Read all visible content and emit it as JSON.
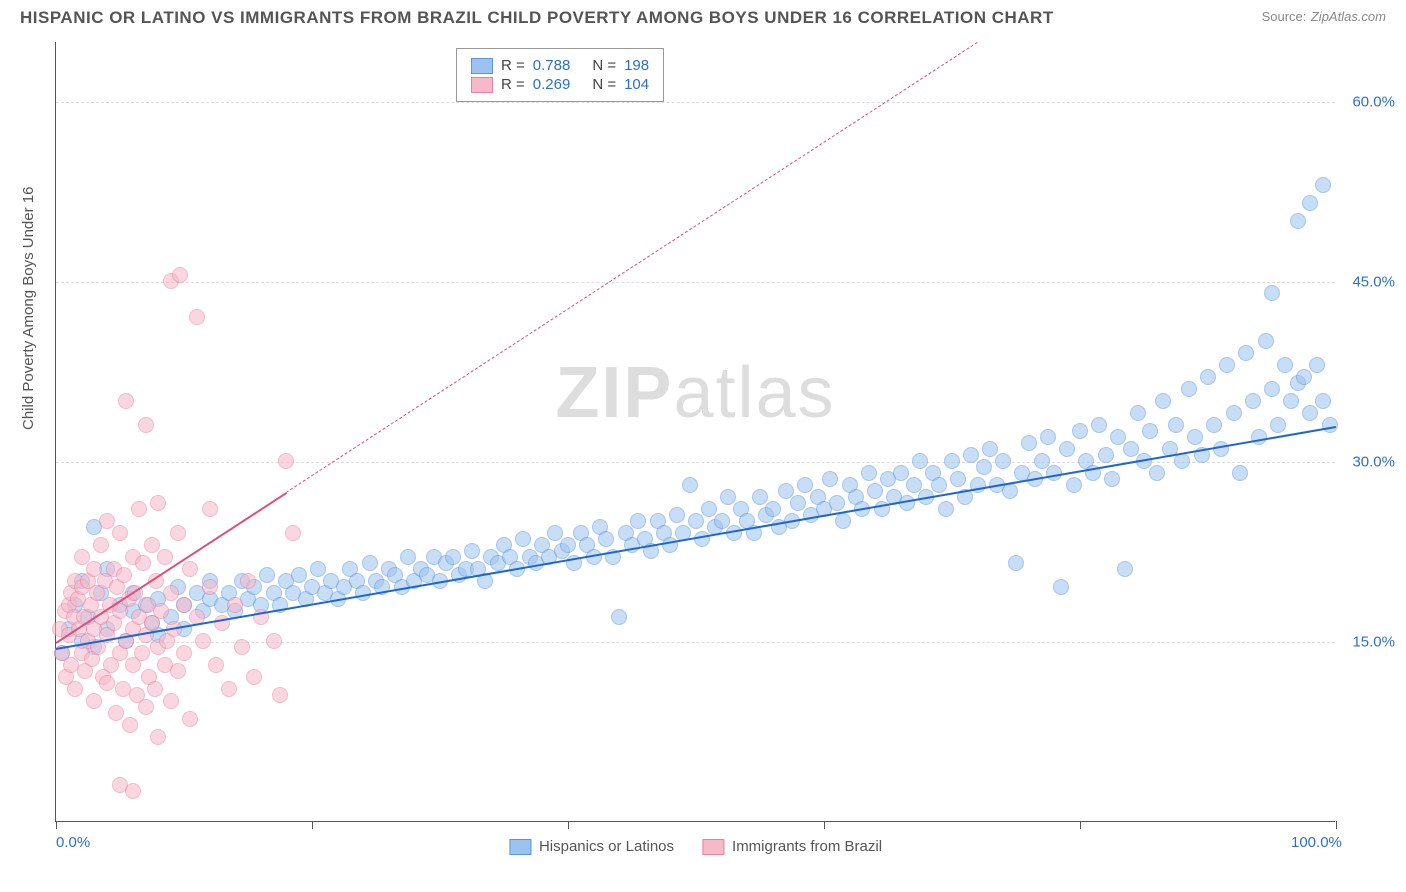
{
  "title": "HISPANIC OR LATINO VS IMMIGRANTS FROM BRAZIL CHILD POVERTY AMONG BOYS UNDER 16 CORRELATION CHART",
  "source_label": "Source:",
  "source_value": "ZipAtlas.com",
  "watermark_a": "ZIP",
  "watermark_b": "atlas",
  "chart": {
    "type": "scatter",
    "ylabel": "Child Poverty Among Boys Under 16",
    "xlim": [
      0,
      100
    ],
    "ylim": [
      0,
      65
    ],
    "xticks": [
      0,
      20,
      40,
      60,
      80,
      100
    ],
    "xtick_labels": {
      "0": "0.0%",
      "100": "100.0%"
    },
    "yticks": [
      15,
      30,
      45,
      60
    ],
    "ytick_labels": {
      "15": "15.0%",
      "30": "30.0%",
      "45": "45.0%",
      "60": "60.0%"
    },
    "grid_color": "#dddddd",
    "axis_color": "#555555",
    "tick_label_color": "#2b6fd6",
    "background_color": "#ffffff",
    "marker_radius": 8,
    "marker_opacity": 0.55,
    "marker_border_opacity": 0.9,
    "label_fontsize": 15,
    "title_fontsize": 17
  },
  "series": [
    {
      "key": "hispanics",
      "label": "Hispanics or Latinos",
      "color_fill": "#9cc3f0",
      "color_stroke": "#5a96db",
      "trend_color": "#1e66d0",
      "R": "0.788",
      "N": "198",
      "trend": {
        "x1": 0,
        "y1": 14.5,
        "x2": 100,
        "y2": 33,
        "dash_after_x": null
      },
      "points": [
        [
          0.5,
          14
        ],
        [
          1,
          16
        ],
        [
          1.5,
          18
        ],
        [
          2,
          15
        ],
        [
          2,
          20
        ],
        [
          2.5,
          17
        ],
        [
          3,
          24.5
        ],
        [
          3,
          14.5
        ],
        [
          3.5,
          19
        ],
        [
          4,
          16
        ],
        [
          4,
          21
        ],
        [
          5,
          18
        ],
        [
          5.5,
          15
        ],
        [
          6,
          17.5
        ],
        [
          6,
          19
        ],
        [
          7,
          18
        ],
        [
          7.5,
          16.5
        ],
        [
          8,
          18.5
        ],
        [
          8,
          15.5
        ],
        [
          9,
          17
        ],
        [
          9.5,
          19.5
        ],
        [
          10,
          18
        ],
        [
          10,
          16
        ],
        [
          11,
          19
        ],
        [
          11.5,
          17.5
        ],
        [
          12,
          18.5
        ],
        [
          12,
          20
        ],
        [
          13,
          18
        ],
        [
          13.5,
          19
        ],
        [
          14,
          17.5
        ],
        [
          14.5,
          20
        ],
        [
          15,
          18.5
        ],
        [
          15.5,
          19.5
        ],
        [
          16,
          18
        ],
        [
          16.5,
          20.5
        ],
        [
          17,
          19
        ],
        [
          17.5,
          18
        ],
        [
          18,
          20
        ],
        [
          18.5,
          19
        ],
        [
          19,
          20.5
        ],
        [
          19.5,
          18.5
        ],
        [
          20,
          19.5
        ],
        [
          20.5,
          21
        ],
        [
          21,
          19
        ],
        [
          21.5,
          20
        ],
        [
          22,
          18.5
        ],
        [
          22.5,
          19.5
        ],
        [
          23,
          21
        ],
        [
          23.5,
          20
        ],
        [
          24,
          19
        ],
        [
          24.5,
          21.5
        ],
        [
          25,
          20
        ],
        [
          25.5,
          19.5
        ],
        [
          26,
          21
        ],
        [
          26.5,
          20.5
        ],
        [
          27,
          19.5
        ],
        [
          27.5,
          22
        ],
        [
          28,
          20
        ],
        [
          28.5,
          21
        ],
        [
          29,
          20.5
        ],
        [
          29.5,
          22
        ],
        [
          30,
          20
        ],
        [
          30.5,
          21.5
        ],
        [
          31,
          22
        ],
        [
          31.5,
          20.5
        ],
        [
          32,
          21
        ],
        [
          32.5,
          22.5
        ],
        [
          33,
          21
        ],
        [
          33.5,
          20
        ],
        [
          34,
          22
        ],
        [
          34.5,
          21.5
        ],
        [
          35,
          23
        ],
        [
          35.5,
          22
        ],
        [
          36,
          21
        ],
        [
          36.5,
          23.5
        ],
        [
          37,
          22
        ],
        [
          37.5,
          21.5
        ],
        [
          38,
          23
        ],
        [
          38.5,
          22
        ],
        [
          39,
          24
        ],
        [
          39.5,
          22.5
        ],
        [
          40,
          23
        ],
        [
          40.5,
          21.5
        ],
        [
          41,
          24
        ],
        [
          41.5,
          23
        ],
        [
          42,
          22
        ],
        [
          42.5,
          24.5
        ],
        [
          43,
          23.5
        ],
        [
          43.5,
          22
        ],
        [
          44,
          17
        ],
        [
          44.5,
          24
        ],
        [
          45,
          23
        ],
        [
          45.5,
          25
        ],
        [
          46,
          23.5
        ],
        [
          46.5,
          22.5
        ],
        [
          47,
          25
        ],
        [
          47.5,
          24
        ],
        [
          48,
          23
        ],
        [
          48.5,
          25.5
        ],
        [
          49,
          24
        ],
        [
          49.5,
          28
        ],
        [
          50,
          25
        ],
        [
          50.5,
          23.5
        ],
        [
          51,
          26
        ],
        [
          51.5,
          24.5
        ],
        [
          52,
          25
        ],
        [
          52.5,
          27
        ],
        [
          53,
          24
        ],
        [
          53.5,
          26
        ],
        [
          54,
          25
        ],
        [
          54.5,
          24
        ],
        [
          55,
          27
        ],
        [
          55.5,
          25.5
        ],
        [
          56,
          26
        ],
        [
          56.5,
          24.5
        ],
        [
          57,
          27.5
        ],
        [
          57.5,
          25
        ],
        [
          58,
          26.5
        ],
        [
          58.5,
          28
        ],
        [
          59,
          25.5
        ],
        [
          59.5,
          27
        ],
        [
          60,
          26
        ],
        [
          60.5,
          28.5
        ],
        [
          61,
          26.5
        ],
        [
          61.5,
          25
        ],
        [
          62,
          28
        ],
        [
          62.5,
          27
        ],
        [
          63,
          26
        ],
        [
          63.5,
          29
        ],
        [
          64,
          27.5
        ],
        [
          64.5,
          26
        ],
        [
          65,
          28.5
        ],
        [
          65.5,
          27
        ],
        [
          66,
          29
        ],
        [
          66.5,
          26.5
        ],
        [
          67,
          28
        ],
        [
          67.5,
          30
        ],
        [
          68,
          27
        ],
        [
          68.5,
          29
        ],
        [
          69,
          28
        ],
        [
          69.5,
          26
        ],
        [
          70,
          30
        ],
        [
          70.5,
          28.5
        ],
        [
          71,
          27
        ],
        [
          71.5,
          30.5
        ],
        [
          72,
          28
        ],
        [
          72.5,
          29.5
        ],
        [
          73,
          31
        ],
        [
          73.5,
          28
        ],
        [
          74,
          30
        ],
        [
          74.5,
          27.5
        ],
        [
          75,
          21.5
        ],
        [
          75.5,
          29
        ],
        [
          76,
          31.5
        ],
        [
          76.5,
          28.5
        ],
        [
          77,
          30
        ],
        [
          77.5,
          32
        ],
        [
          78,
          29
        ],
        [
          78.5,
          19.5
        ],
        [
          79,
          31
        ],
        [
          79.5,
          28
        ],
        [
          80,
          32.5
        ],
        [
          80.5,
          30
        ],
        [
          81,
          29
        ],
        [
          81.5,
          33
        ],
        [
          82,
          30.5
        ],
        [
          82.5,
          28.5
        ],
        [
          83,
          32
        ],
        [
          83.5,
          21
        ],
        [
          84,
          31
        ],
        [
          84.5,
          34
        ],
        [
          85,
          30
        ],
        [
          85.5,
          32.5
        ],
        [
          86,
          29
        ],
        [
          86.5,
          35
        ],
        [
          87,
          31
        ],
        [
          87.5,
          33
        ],
        [
          88,
          30
        ],
        [
          88.5,
          36
        ],
        [
          89,
          32
        ],
        [
          89.5,
          30.5
        ],
        [
          90,
          37
        ],
        [
          90.5,
          33
        ],
        [
          91,
          31
        ],
        [
          91.5,
          38
        ],
        [
          92,
          34
        ],
        [
          92.5,
          29
        ],
        [
          93,
          39
        ],
        [
          93.5,
          35
        ],
        [
          94,
          32
        ],
        [
          94.5,
          40
        ],
        [
          95,
          36
        ],
        [
          95,
          44
        ],
        [
          95.5,
          33
        ],
        [
          96,
          38
        ],
        [
          96.5,
          35
        ],
        [
          97,
          36.5
        ],
        [
          97,
          50
        ],
        [
          97.5,
          37
        ],
        [
          98,
          34
        ],
        [
          98,
          51.5
        ],
        [
          98.5,
          38
        ],
        [
          99,
          53
        ],
        [
          99,
          35
        ],
        [
          99.5,
          33
        ]
      ]
    },
    {
      "key": "brazil",
      "label": "Immigrants from Brazil",
      "color_fill": "#f7b8c8",
      "color_stroke": "#ec7fa0",
      "trend_color": "#e04f7c",
      "R": "0.269",
      "N": "104",
      "trend": {
        "x1": 0,
        "y1": 15,
        "x2": 72,
        "y2": 65,
        "dash_after_x": 18
      },
      "points": [
        [
          0.3,
          16
        ],
        [
          0.5,
          14
        ],
        [
          0.7,
          17.5
        ],
        [
          0.8,
          12
        ],
        [
          1,
          18
        ],
        [
          1,
          15.5
        ],
        [
          1.2,
          19
        ],
        [
          1.2,
          13
        ],
        [
          1.4,
          17
        ],
        [
          1.5,
          20
        ],
        [
          1.5,
          11
        ],
        [
          1.7,
          18.5
        ],
        [
          1.8,
          16
        ],
        [
          2,
          19.5
        ],
        [
          2,
          14
        ],
        [
          2,
          22
        ],
        [
          2.2,
          17
        ],
        [
          2.3,
          12.5
        ],
        [
          2.5,
          20
        ],
        [
          2.5,
          15
        ],
        [
          2.7,
          18
        ],
        [
          2.8,
          13.5
        ],
        [
          3,
          21
        ],
        [
          3,
          16
        ],
        [
          3,
          10
        ],
        [
          3.2,
          19
        ],
        [
          3.3,
          14.5
        ],
        [
          3.5,
          23
        ],
        [
          3.5,
          17
        ],
        [
          3.7,
          12
        ],
        [
          3.8,
          20
        ],
        [
          4,
          15.5
        ],
        [
          4,
          25
        ],
        [
          4,
          11.5
        ],
        [
          4.2,
          18
        ],
        [
          4.3,
          13
        ],
        [
          4.5,
          21
        ],
        [
          4.5,
          16.5
        ],
        [
          4.7,
          9
        ],
        [
          4.8,
          19.5
        ],
        [
          5,
          14
        ],
        [
          5,
          24
        ],
        [
          5,
          17.5
        ],
        [
          5,
          3
        ],
        [
          5.2,
          11
        ],
        [
          5.3,
          20.5
        ],
        [
          5.5,
          15
        ],
        [
          5.5,
          35
        ],
        [
          5.7,
          18.5
        ],
        [
          5.8,
          8
        ],
        [
          6,
          22
        ],
        [
          6,
          16
        ],
        [
          6,
          13
        ],
        [
          6,
          2.5
        ],
        [
          6.2,
          19
        ],
        [
          6.3,
          10.5
        ],
        [
          6.5,
          26
        ],
        [
          6.5,
          17
        ],
        [
          6.7,
          14
        ],
        [
          6.8,
          21.5
        ],
        [
          7,
          15.5
        ],
        [
          7,
          9.5
        ],
        [
          7,
          33
        ],
        [
          7.2,
          18
        ],
        [
          7.3,
          12
        ],
        [
          7.5,
          23
        ],
        [
          7.5,
          16.5
        ],
        [
          7.7,
          11
        ],
        [
          7.8,
          20
        ],
        [
          8,
          14.5
        ],
        [
          8,
          26.5
        ],
        [
          8,
          7
        ],
        [
          8.2,
          17.5
        ],
        [
          8.5,
          13
        ],
        [
          8.5,
          22
        ],
        [
          8.7,
          15
        ],
        [
          9,
          19
        ],
        [
          9,
          10
        ],
        [
          9,
          45
        ],
        [
          9.2,
          16
        ],
        [
          9.5,
          24
        ],
        [
          9.5,
          12.5
        ],
        [
          9.7,
          45.5
        ],
        [
          10,
          18
        ],
        [
          10,
          14
        ],
        [
          10.5,
          21
        ],
        [
          10.5,
          8.5
        ],
        [
          11,
          17
        ],
        [
          11,
          42
        ],
        [
          11.5,
          15
        ],
        [
          12,
          19.5
        ],
        [
          12,
          26
        ],
        [
          12.5,
          13
        ],
        [
          13,
          16.5
        ],
        [
          13.5,
          11
        ],
        [
          14,
          18
        ],
        [
          14.5,
          14.5
        ],
        [
          15,
          20
        ],
        [
          15.5,
          12
        ],
        [
          16,
          17
        ],
        [
          17,
          15
        ],
        [
          17.5,
          10.5
        ],
        [
          18,
          30
        ],
        [
          18.5,
          24
        ]
      ]
    }
  ],
  "stat_box": {
    "R_label": "R",
    "N_label": "N",
    "eq": "="
  }
}
